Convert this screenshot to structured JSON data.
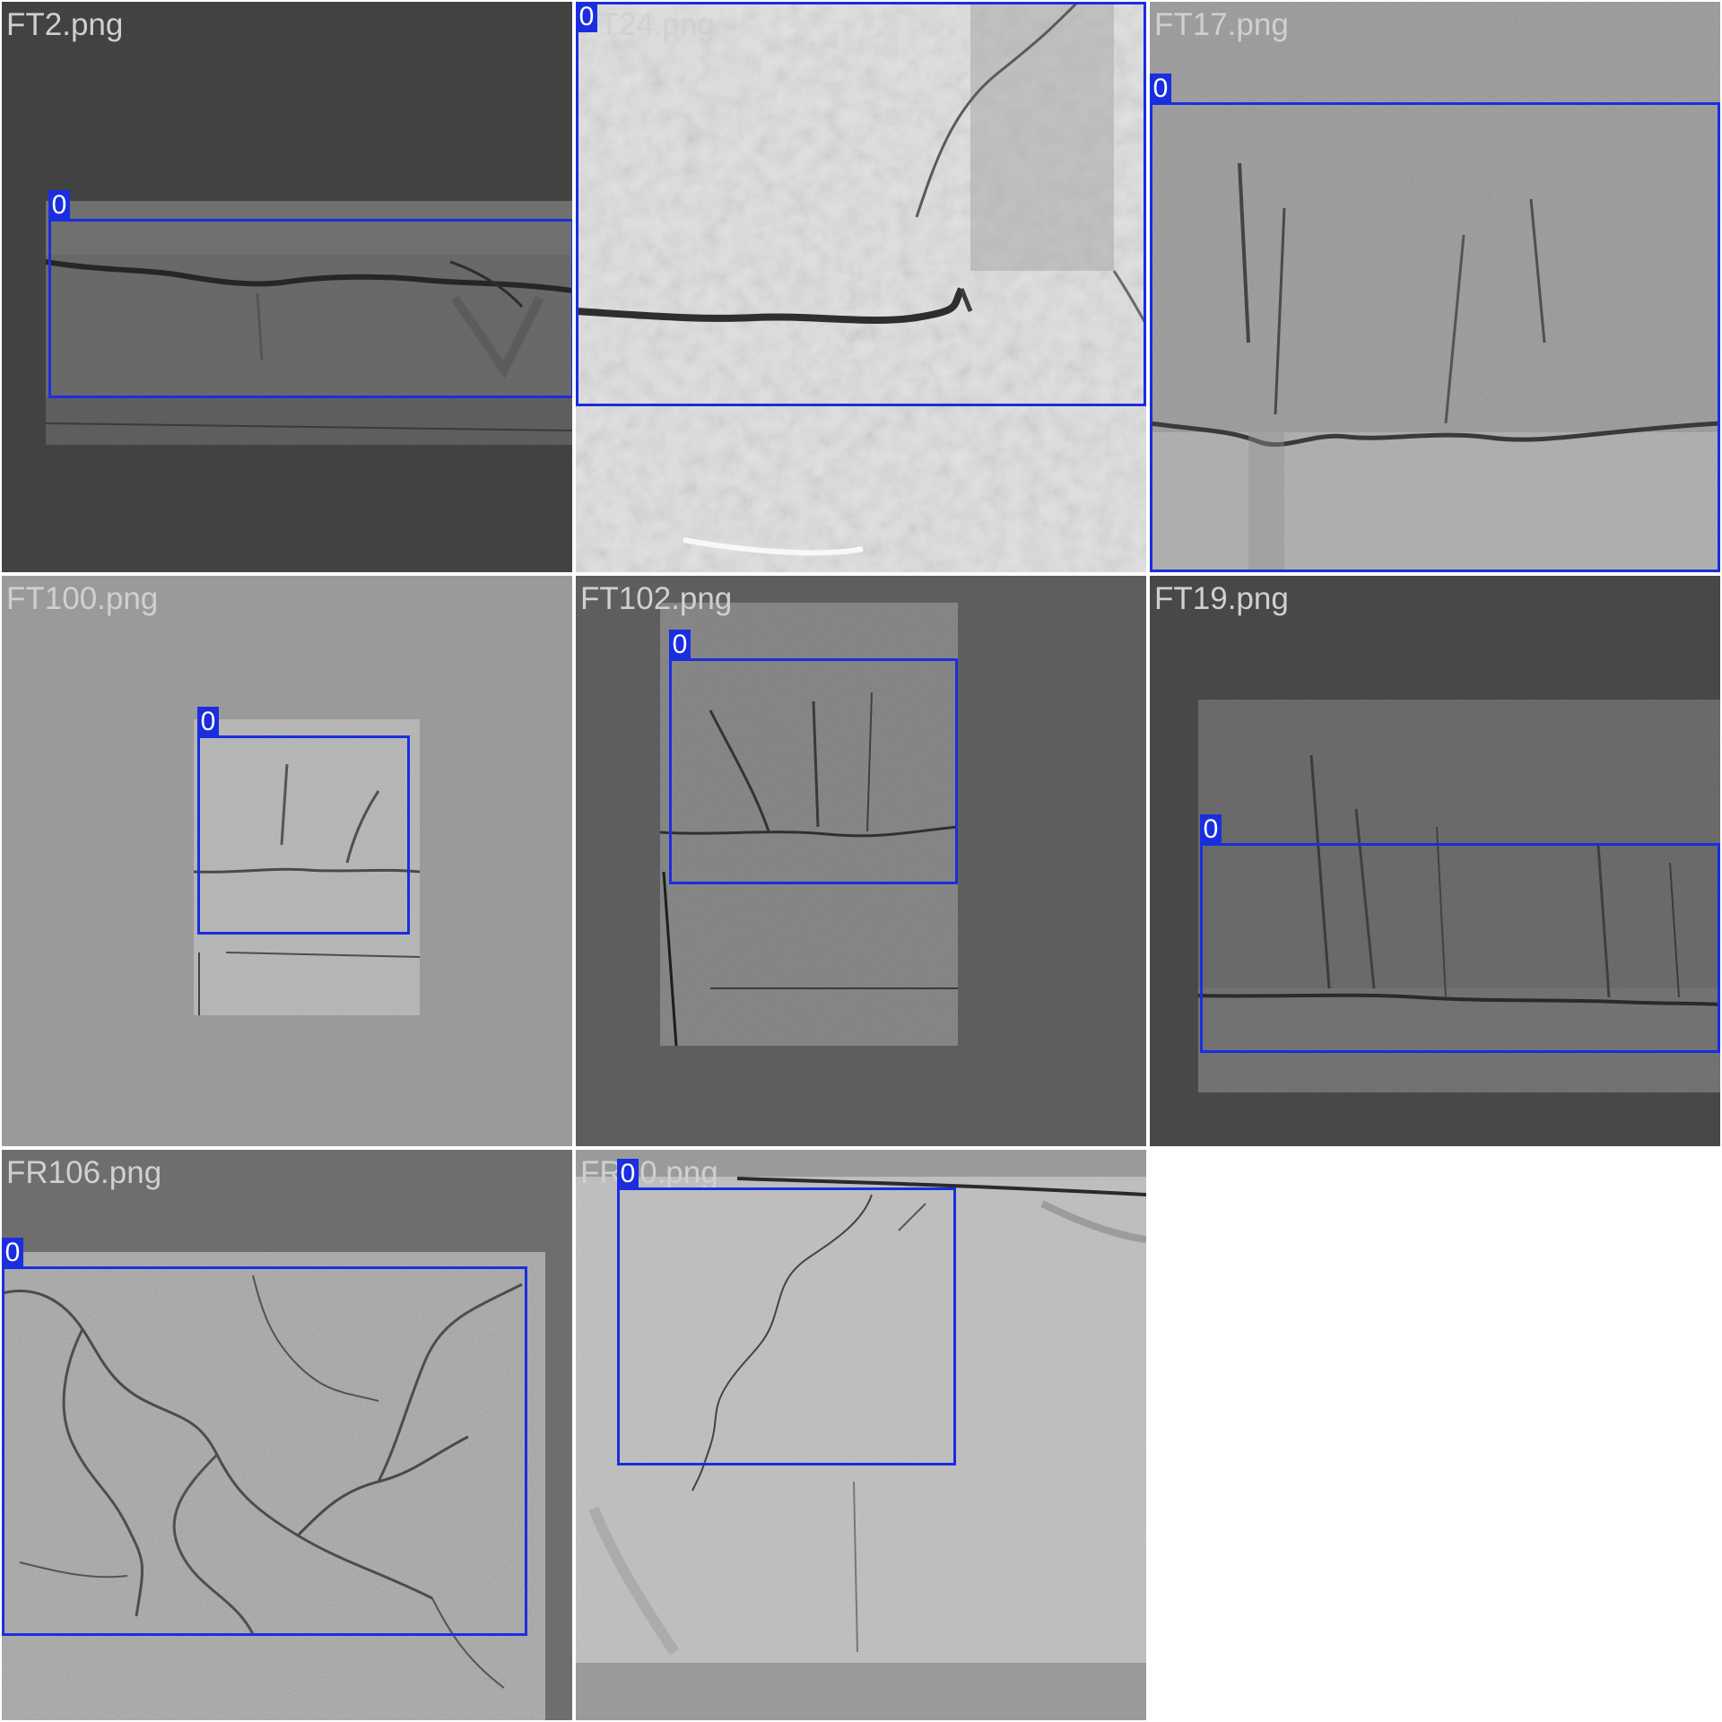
{
  "colors": {
    "detection_box": "#1a2ee0",
    "tile_label": "#d0d0d0",
    "divider": "#ffffff"
  },
  "tiles": [
    {
      "filename": "FT2.png",
      "detections": [
        {
          "class_label": "0"
        }
      ]
    },
    {
      "filename": "FT24.png",
      "detections": [
        {
          "class_label": "0"
        }
      ]
    },
    {
      "filename": "FT17.png",
      "detections": [
        {
          "class_label": "0"
        }
      ]
    },
    {
      "filename": "FT100.png",
      "detections": [
        {
          "class_label": "0"
        }
      ]
    },
    {
      "filename": "FT102.png",
      "detections": [
        {
          "class_label": "0"
        }
      ]
    },
    {
      "filename": "FT19.png",
      "detections": [
        {
          "class_label": "0"
        }
      ]
    },
    {
      "filename": "FR106.png",
      "detections": [
        {
          "class_label": "0"
        }
      ]
    },
    {
      "filename": "FR10.png",
      "detections": [
        {
          "class_label": "0"
        }
      ]
    }
  ]
}
